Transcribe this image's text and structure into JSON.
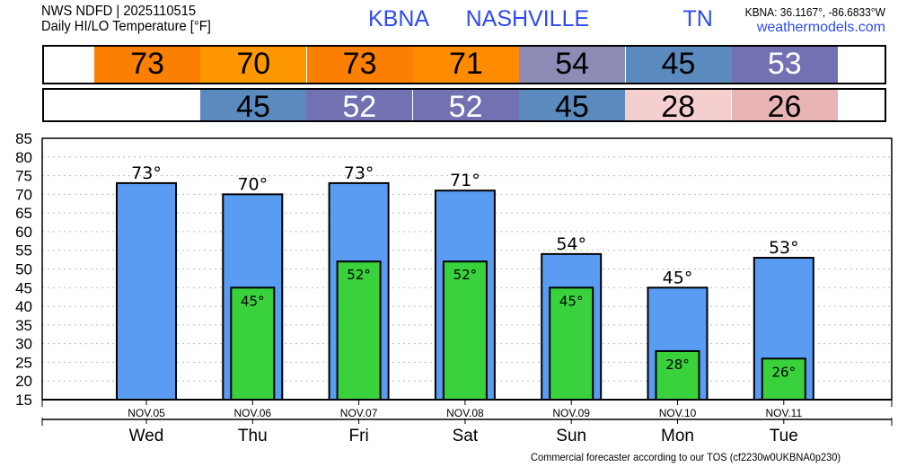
{
  "header": {
    "line1": "NWS NDFD | 2025110515",
    "line2": "Daily HI/LO Temperature [°F]",
    "station_title": "KBNA  NASHVILLE     TN",
    "coords": "KBNA: 36.1167°, -86.6833°W",
    "site": "weathermodels.com"
  },
  "footer": "Commercial forecaster according to our TOS (cf2230w0UKBNA0p230)",
  "hi_row": [
    {
      "v": "73",
      "bg": "#fb7f00",
      "fg": "#000"
    },
    {
      "v": "70",
      "bg": "#ff9800",
      "fg": "#000"
    },
    {
      "v": "73",
      "bg": "#fb7f00",
      "fg": "#000"
    },
    {
      "v": "71",
      "bg": "#ff8c00",
      "fg": "#000"
    },
    {
      "v": "54",
      "bg": "#8c8cb6",
      "fg": "#000"
    },
    {
      "v": "45",
      "bg": "#5a8abe",
      "fg": "#000"
    },
    {
      "v": "53",
      "bg": "#7272b2",
      "fg": "#fff"
    }
  ],
  "lo_row": [
    {
      "v": "45",
      "bg": "#5a8abe",
      "fg": "#000"
    },
    {
      "v": "52",
      "bg": "#7272b2",
      "fg": "#fff"
    },
    {
      "v": "52",
      "bg": "#7272b2",
      "fg": "#fff"
    },
    {
      "v": "45",
      "bg": "#5a8abe",
      "fg": "#000"
    },
    {
      "v": "28",
      "bg": "#f5cece",
      "fg": "#000"
    },
    {
      "v": "26",
      "bg": "#e8b4b4",
      "fg": "#000"
    }
  ],
  "chart_data": {
    "type": "bar",
    "categories": [
      "NOV.05",
      "NOV.06",
      "NOV.07",
      "NOV.08",
      "NOV.09",
      "NOV.10",
      "NOV.11"
    ],
    "days": [
      "Wed",
      "Thu",
      "Fri",
      "Sat",
      "Sun",
      "Mon",
      "Tue"
    ],
    "series": [
      {
        "values": [
          73,
          70,
          73,
          71,
          54,
          45,
          53
        ],
        "color": "#5a9cf2"
      },
      {
        "values": [
          null,
          45,
          52,
          52,
          45,
          28,
          26
        ],
        "color": "#39d23c"
      }
    ],
    "ylim": [
      15,
      85
    ],
    "yticks": [
      15,
      20,
      25,
      30,
      35,
      40,
      45,
      50,
      55,
      60,
      65,
      70,
      75,
      80,
      85
    ],
    "grid": true
  }
}
